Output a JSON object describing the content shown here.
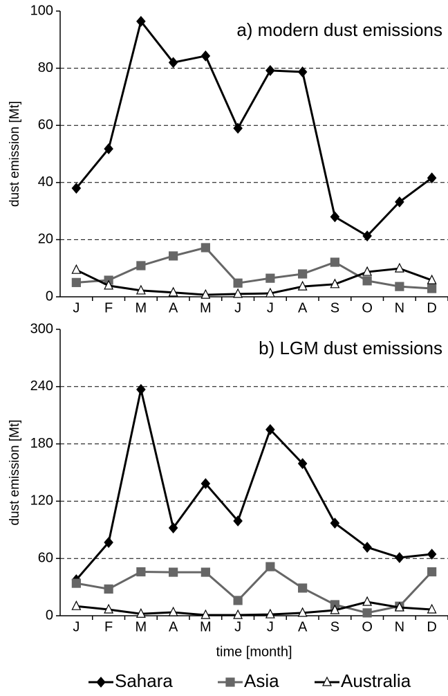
{
  "chart_data": [
    {
      "type": "line",
      "title": "a) modern dust emissions",
      "y_label": "dust emission [Mt]",
      "categories": [
        "J",
        "F",
        "M",
        "A",
        "M",
        "J",
        "J",
        "A",
        "S",
        "O",
        "N",
        "D"
      ],
      "ylim": [
        0,
        100
      ],
      "yticks": [
        0,
        20,
        40,
        60,
        80,
        100
      ],
      "grid": true,
      "series": [
        {
          "name": "Sahara",
          "color": "#000000",
          "marker": "diamond",
          "values": [
            38,
            51.8,
            96.4,
            82,
            84.3,
            59,
            79.2,
            78.7,
            28,
            21.3,
            33.2,
            41.6
          ]
        },
        {
          "name": "Asia",
          "color": "#666666",
          "marker": "square",
          "values": [
            5,
            5.8,
            10.9,
            14.3,
            17.2,
            4.8,
            6.5,
            8,
            12.1,
            5.6,
            3.6,
            2.9
          ]
        },
        {
          "name": "Australia",
          "color": "#000000",
          "marker": "triangle",
          "values": [
            9.4,
            3.9,
            2.2,
            1.5,
            0.7,
            1,
            1.2,
            3.6,
            4.4,
            8.7,
            9.9,
            5.8
          ]
        }
      ]
    },
    {
      "type": "line",
      "title": "b) LGM dust emissions",
      "y_label": "dust emission [Mt]",
      "x_label": "time [month]",
      "categories": [
        "J",
        "F",
        "M",
        "A",
        "M",
        "J",
        "J",
        "A",
        "S",
        "O",
        "N",
        "D"
      ],
      "ylim": [
        0,
        300
      ],
      "yticks": [
        0,
        60,
        120,
        180,
        240,
        300
      ],
      "grid": true,
      "series": [
        {
          "name": "Sahara",
          "color": "#000000",
          "marker": "diamond",
          "values": [
            37.7,
            76.8,
            237,
            92,
            138.4,
            99.3,
            195,
            159.4,
            97,
            71.7,
            60.9,
            64.5
          ]
        },
        {
          "name": "Asia",
          "color": "#666666",
          "marker": "square",
          "values": [
            34,
            28,
            46,
            45.6,
            45.6,
            16,
            51.4,
            29,
            11.6,
            3,
            10,
            46
          ]
        },
        {
          "name": "Australia",
          "color": "#000000",
          "marker": "triangle",
          "values": [
            10,
            6.5,
            2,
            3.6,
            0.7,
            0.7,
            1.4,
            3,
            5.8,
            14.5,
            8.7,
            6.5
          ]
        }
      ]
    }
  ]
}
